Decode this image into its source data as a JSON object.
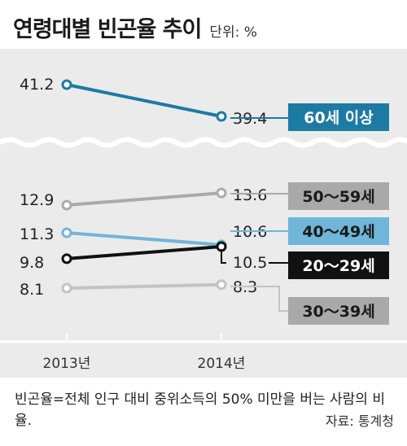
{
  "header": {
    "title": "연령대별 빈곤율 추이",
    "unit": "단위: %"
  },
  "chart_data": {
    "type": "line",
    "title": "연령대별 빈곤율 추이",
    "unit": "%",
    "x": [
      "2013년",
      "2014년"
    ],
    "ylim": [
      0,
      45
    ],
    "axis_break": true,
    "grid": false,
    "legend": "right",
    "series": [
      {
        "name": "60세 이상",
        "values": [
          41.2,
          39.4
        ],
        "color": "#1d7aa3",
        "label_bg": "#1d7aa3",
        "label_fg": "#ffffff"
      },
      {
        "name": "50～59세",
        "values": [
          12.9,
          13.6
        ],
        "color": "#aaaaaa",
        "label_bg": "#a9a9a9",
        "label_fg": "#1a1a1a"
      },
      {
        "name": "40～49세",
        "values": [
          11.3,
          10.6
        ],
        "color": "#6fb6d8",
        "label_bg": "#6fb6d8",
        "label_fg": "#1a1a1a"
      },
      {
        "name": "20～29세",
        "values": [
          9.8,
          10.5
        ],
        "color": "#111111",
        "label_bg": "#111111",
        "label_fg": "#ffffff"
      },
      {
        "name": "30～39세",
        "values": [
          8.1,
          8.3
        ],
        "color": "#c3c3c3",
        "label_bg": "#a9a9a9",
        "label_fg": "#1a1a1a"
      }
    ]
  },
  "footnote": "빈곤율=전체 인구 대비 중위소득의 50% 미만을 버는 사람의 비율.",
  "source": "자료: 통계청"
}
